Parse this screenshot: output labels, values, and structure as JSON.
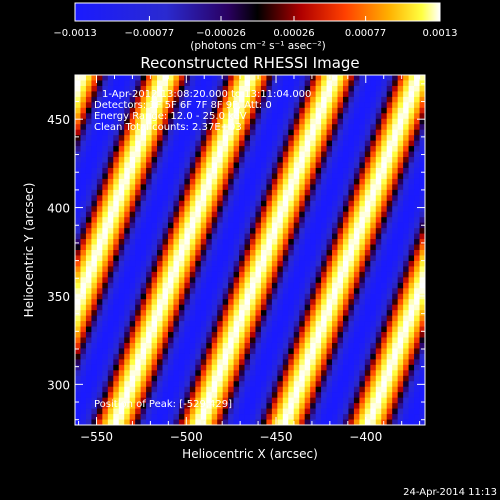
{
  "chart_data": {
    "type": "heatmap",
    "title": "Reconstructed RHESSI Image",
    "xlabel": "Heliocentric X (arcsec)",
    "ylabel": "Heliocentric Y (arcsec)",
    "xlim": [
      -562,
      -367
    ],
    "ylim": [
      277,
      475
    ],
    "x_ticks": [
      -550,
      -500,
      -450,
      -400
    ],
    "y_ticks": [
      300,
      350,
      400,
      450
    ],
    "colorbar": {
      "range": [
        -0.0013,
        0.0013
      ],
      "tick_values": [
        -0.0013,
        -0.00077,
        -0.00026,
        0.00026,
        0.00077,
        0.0013
      ],
      "tick_labels": [
        "-0.0013",
        "-0.00077",
        "-0.00026",
        "0.00026",
        "0.00077",
        "0.0013"
      ],
      "unit_label": "(photons cm⁻² s⁻¹ asec⁻²)",
      "colormap": "blue-black-red-yellow-white"
    },
    "annotations": [
      "1-Apr-2012 13:08:20.000 to 13:11:04.000",
      "Detectors: 3F 5F 6F 7F 8F 9F, Att: 0",
      "Energy Range: 12.0 - 25.0 keV",
      "Clean        Total counts: 2.37E+03"
    ],
    "peak_label": "Position of Peak: [-529,429]",
    "pattern": {
      "description": "diagonal fringe stripes",
      "period_x_arcsec": 47,
      "slope_dx_per_dy": 0.38,
      "peak_position": [
        -529,
        429
      ],
      "amplitude": 0.0013
    },
    "grid": false
  },
  "footer": {
    "date": "24-Apr-2014 11:13"
  }
}
